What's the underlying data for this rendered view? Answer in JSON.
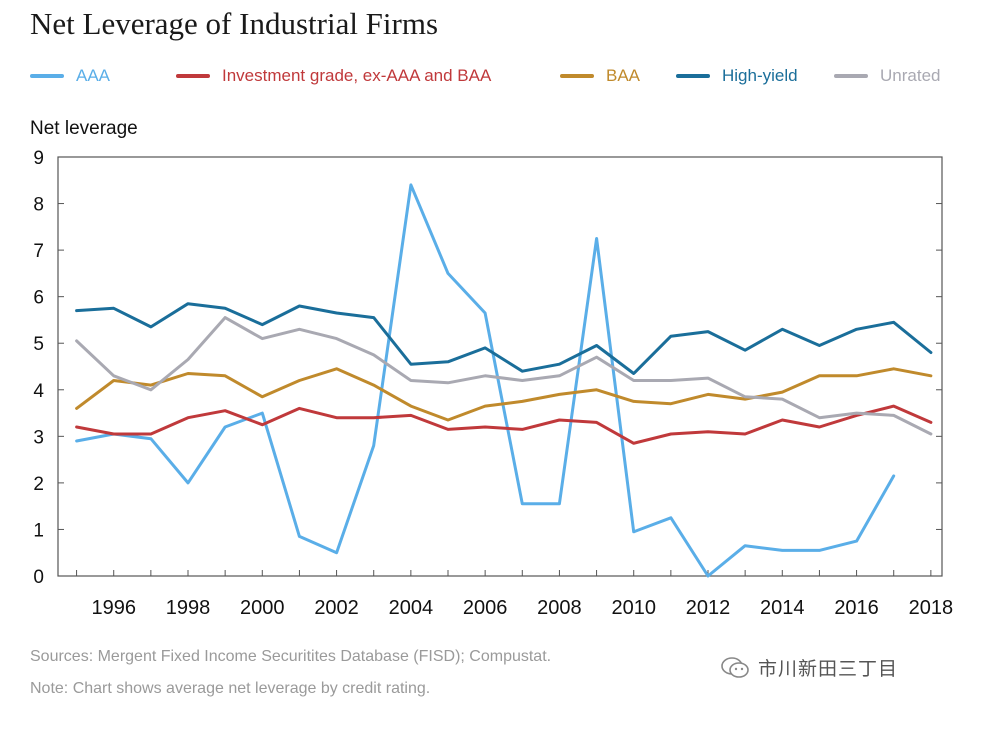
{
  "title": "Net Leverage of Industrial Firms",
  "footer": {
    "sources": "Sources: Mergent Fixed Income Securitites Database (FISD); Compustat.",
    "note": "Note: Chart shows average net leverage by credit rating."
  },
  "watermark": {
    "text": "市川新田三丁目"
  },
  "chart_data": {
    "type": "line",
    "title": "Net Leverage of Industrial Firms",
    "xlabel": "",
    "ylabel": "Net leverage",
    "xlim": [
      1994.5,
      2018.3
    ],
    "ylim": [
      0,
      9
    ],
    "yticks": [
      0,
      1,
      2,
      3,
      4,
      5,
      6,
      7,
      8,
      9
    ],
    "xticks": [
      1996,
      1998,
      2000,
      2002,
      2004,
      2006,
      2008,
      2010,
      2012,
      2014,
      2016,
      2018
    ],
    "xtick_labels": [
      "1996",
      "1998",
      "2000",
      "2002",
      "2004",
      "2006",
      "2008",
      "2010",
      "2012",
      "2014",
      "2016",
      "2018"
    ],
    "legend_position": "top",
    "grid": false,
    "series": [
      {
        "name": "AAA",
        "color": "#5aaee8",
        "x": [
          1995,
          1996,
          1997,
          1998,
          1999,
          2000,
          2001,
          2002,
          2003,
          2004,
          2005,
          2006,
          2007,
          2008,
          2009,
          2010,
          2011,
          2012,
          2013,
          2014,
          2015,
          2016,
          2017
        ],
        "values": [
          2.9,
          3.05,
          2.95,
          2.0,
          3.2,
          3.5,
          0.85,
          0.5,
          2.8,
          8.4,
          6.5,
          5.65,
          1.55,
          1.55,
          7.25,
          0.95,
          1.25,
          0.0,
          0.65,
          0.55,
          0.55,
          0.75,
          2.15
        ]
      },
      {
        "name": "Investment grade, ex-AAA and BAA",
        "color": "#c0393b",
        "x": [
          1995,
          1996,
          1997,
          1998,
          1999,
          2000,
          2001,
          2002,
          2003,
          2004,
          2005,
          2006,
          2007,
          2008,
          2009,
          2010,
          2011,
          2012,
          2013,
          2014,
          2015,
          2016,
          2017,
          2018
        ],
        "values": [
          3.2,
          3.05,
          3.05,
          3.4,
          3.55,
          3.25,
          3.6,
          3.4,
          3.4,
          3.45,
          3.15,
          3.2,
          3.15,
          3.35,
          3.3,
          2.85,
          3.05,
          3.1,
          3.05,
          3.35,
          3.2,
          3.45,
          3.65,
          3.3
        ]
      },
      {
        "name": "BAA",
        "color": "#c08a2c",
        "x": [
          1995,
          1996,
          1997,
          1998,
          1999,
          2000,
          2001,
          2002,
          2003,
          2004,
          2005,
          2006,
          2007,
          2008,
          2009,
          2010,
          2011,
          2012,
          2013,
          2014,
          2015,
          2016,
          2017,
          2018
        ],
        "values": [
          3.6,
          4.2,
          4.1,
          4.35,
          4.3,
          3.85,
          4.2,
          4.45,
          4.1,
          3.65,
          3.35,
          3.65,
          3.75,
          3.9,
          4.0,
          3.75,
          3.7,
          3.9,
          3.8,
          3.95,
          4.3,
          4.3,
          4.45,
          4.3
        ]
      },
      {
        "name": "High-yield",
        "color": "#1a6e9a",
        "x": [
          1995,
          1996,
          1997,
          1998,
          1999,
          2000,
          2001,
          2002,
          2003,
          2004,
          2005,
          2006,
          2007,
          2008,
          2009,
          2010,
          2011,
          2012,
          2013,
          2014,
          2015,
          2016,
          2017,
          2018
        ],
        "values": [
          5.7,
          5.75,
          5.35,
          5.85,
          5.75,
          5.4,
          5.8,
          5.65,
          5.55,
          4.55,
          4.6,
          4.9,
          4.4,
          4.55,
          4.95,
          4.35,
          5.15,
          5.25,
          4.85,
          5.3,
          4.95,
          5.3,
          5.45,
          4.8
        ]
      },
      {
        "name": "Unrated",
        "color": "#a9a9b2",
        "x": [
          1995,
          1996,
          1997,
          1998,
          1999,
          2000,
          2001,
          2002,
          2003,
          2004,
          2005,
          2006,
          2007,
          2008,
          2009,
          2010,
          2011,
          2012,
          2013,
          2014,
          2015,
          2016,
          2017,
          2018
        ],
        "values": [
          5.05,
          4.3,
          4.0,
          4.65,
          5.55,
          5.1,
          5.3,
          5.1,
          4.75,
          4.2,
          4.15,
          4.3,
          4.2,
          4.3,
          4.7,
          4.2,
          4.2,
          4.25,
          3.85,
          3.8,
          3.4,
          3.5,
          3.45,
          3.05
        ]
      }
    ]
  }
}
